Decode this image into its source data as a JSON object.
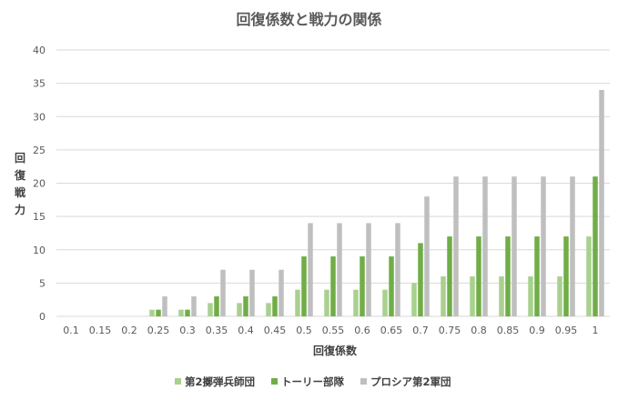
{
  "chart_data": {
    "type": "bar",
    "title": "回復係数と戦力の関係",
    "xlabel": "回復係数",
    "ylabel": "回復戦力",
    "ylim": [
      0,
      40
    ],
    "yticks": [
      0,
      5,
      10,
      15,
      20,
      25,
      30,
      35,
      40
    ],
    "grid": true,
    "legend_position": "bottom",
    "categories": [
      "0.1",
      "0.15",
      "0.2",
      "0.25",
      "0.3",
      "0.35",
      "0.4",
      "0.45",
      "0.5",
      "0.55",
      "0.6",
      "0.65",
      "0.7",
      "0.75",
      "0.8",
      "0.85",
      "0.9",
      "0.95",
      "1"
    ],
    "series": [
      {
        "name": "第2擲弾兵師団",
        "color": "#a9d18e",
        "values": [
          0,
          0,
          0,
          1,
          1,
          2,
          2,
          2,
          4,
          4,
          4,
          4,
          5,
          6,
          6,
          6,
          6,
          6,
          12
        ]
      },
      {
        "name": "トーリー部隊",
        "color": "#70ad47",
        "values": [
          0,
          0,
          0,
          1,
          1,
          3,
          3,
          3,
          9,
          9,
          9,
          9,
          11,
          12,
          12,
          12,
          12,
          12,
          21
        ]
      },
      {
        "name": "プロシア第2軍団",
        "color": "#bfbfbf",
        "values": [
          0,
          0,
          0,
          3,
          3,
          7,
          7,
          7,
          14,
          14,
          14,
          14,
          18,
          21,
          21,
          21,
          21,
          21,
          34
        ]
      }
    ]
  }
}
